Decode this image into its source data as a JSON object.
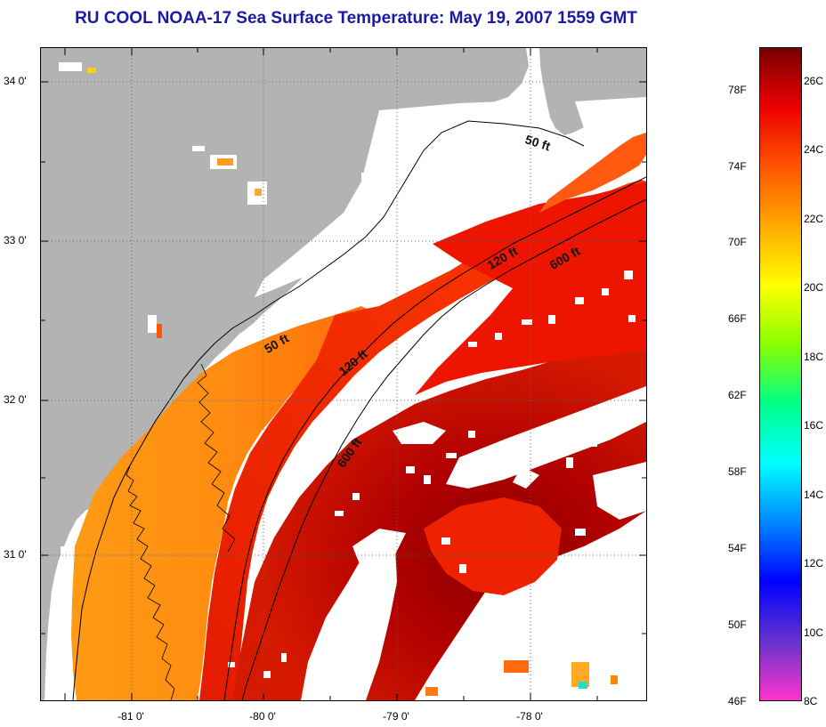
{
  "title": "RU COOL  NOAA-17  Sea Surface Temperature:  May 19, 2007 1559 GMT",
  "map": {
    "latitude_labels": [
      "34 0'",
      "33 0'",
      "32 0'",
      "31 0'"
    ],
    "longitude_labels": [
      "-81 0'",
      "-80 0'",
      "-79 0'",
      "-78 0'"
    ],
    "depth_contours": [
      {
        "label": "50 ft"
      },
      {
        "label": "50 ft"
      },
      {
        "label": "120 ft"
      },
      {
        "label": "120 ft"
      },
      {
        "label": "600 ft"
      },
      {
        "label": "600 ft"
      }
    ],
    "colors": {
      "land": "#b3b3b3",
      "cloud_or_no_data": "#ffffff",
      "coastline": "#000000"
    }
  },
  "colorbar": {
    "fahrenheit_labels": [
      "78F",
      "74F",
      "70F",
      "66F",
      "62F",
      "58F",
      "54F",
      "50F",
      "46F"
    ],
    "celsius_labels": [
      "26C",
      "24C",
      "22C",
      "20C",
      "18C",
      "16C",
      "14C",
      "12C",
      "10C",
      "8C"
    ],
    "range_c": [
      8,
      27
    ],
    "colors": [
      "#ff33cc",
      "#6633cc",
      "#0000ff",
      "#0088ff",
      "#00ffff",
      "#00ff88",
      "#88ff00",
      "#ffff00",
      "#ffaa00",
      "#ff5500",
      "#ee0000",
      "#770000"
    ]
  }
}
